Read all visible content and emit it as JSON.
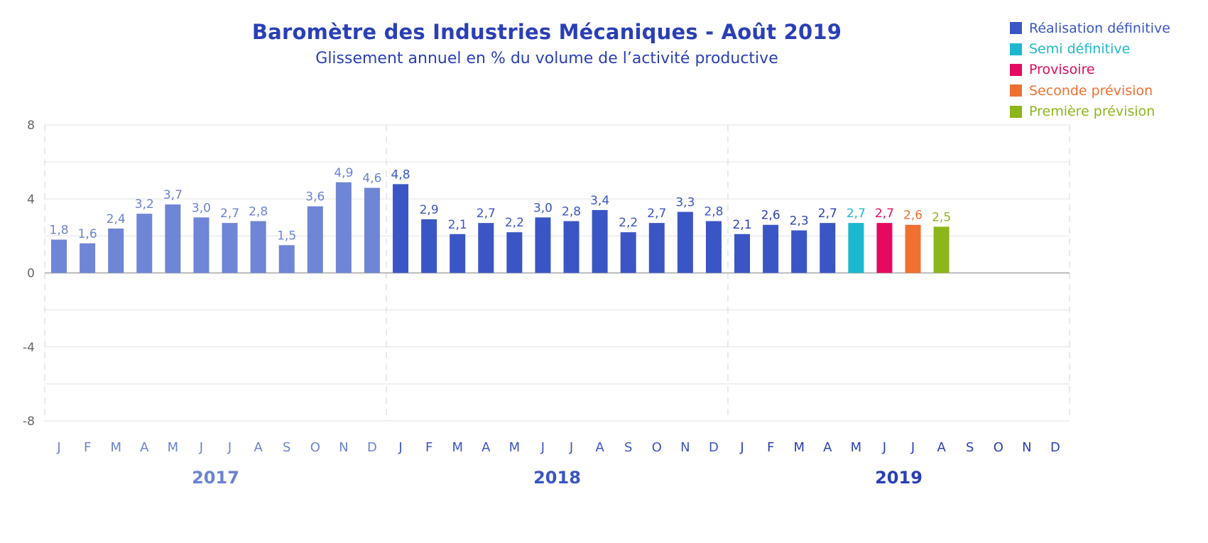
{
  "title": "Baromètre des Industries Mécaniques - Août 2019",
  "subtitle": "Glissement annuel en % du volume de l’activité productive",
  "legend": [
    {
      "label": "Réalisation définitive",
      "color": "#3a56c4"
    },
    {
      "label": "Semi définitive",
      "color": "#1db8cf"
    },
    {
      "label": "Provisoire",
      "color": "#e5095f"
    },
    {
      "label": "Seconde prévision",
      "color": "#ef7031"
    },
    {
      "label": "Première prévision",
      "color": "#8db61b"
    }
  ],
  "chart_data": {
    "type": "bar",
    "title": "Baromètre des Industries Mécaniques - Août 2019",
    "subtitle": "Glissement annuel en % du volume de l’activité productive",
    "ylim": [
      -8,
      8
    ],
    "yticks": [
      "8",
      "4",
      "0",
      "-4",
      "-8"
    ],
    "ytick_values": [
      8,
      4,
      0,
      -4,
      -8
    ],
    "grid": true,
    "legend_position": "top-right",
    "years": [
      {
        "label": "2017",
        "color": "#6b82d4"
      },
      {
        "label": "2018",
        "color": "#3a56c4"
      },
      {
        "label": "2019",
        "color": "#2a3fb6"
      }
    ],
    "month_labels": [
      "J",
      "F",
      "M",
      "A",
      "M",
      "J",
      "J",
      "A",
      "S",
      "O",
      "N",
      "D"
    ],
    "colors": {
      "2017": "#6f85d6",
      "realisation_definitive": "#3a56c4",
      "semi_definitive": "#1db8cf",
      "provisoire": "#e5095f",
      "seconde_prevision": "#ef7031",
      "premiere_prevision": "#8db61b"
    },
    "bars": [
      {
        "year": "2017",
        "month": "J",
        "value": 1.8,
        "label": "1,8",
        "status": "2017"
      },
      {
        "year": "2017",
        "month": "F",
        "value": 1.6,
        "label": "1,6",
        "status": "2017"
      },
      {
        "year": "2017",
        "month": "M",
        "value": 2.4,
        "label": "2,4",
        "status": "2017"
      },
      {
        "year": "2017",
        "month": "A",
        "value": 3.2,
        "label": "3,2",
        "status": "2017"
      },
      {
        "year": "2017",
        "month": "M",
        "value": 3.7,
        "label": "3,7",
        "status": "2017"
      },
      {
        "year": "2017",
        "month": "J",
        "value": 3.0,
        "label": "3,0",
        "status": "2017"
      },
      {
        "year": "2017",
        "month": "J",
        "value": 2.7,
        "label": "2,7",
        "status": "2017"
      },
      {
        "year": "2017",
        "month": "A",
        "value": 2.8,
        "label": "2,8",
        "status": "2017"
      },
      {
        "year": "2017",
        "month": "S",
        "value": 1.5,
        "label": "1,5",
        "status": "2017"
      },
      {
        "year": "2017",
        "month": "O",
        "value": 3.6,
        "label": "3,6",
        "status": "2017"
      },
      {
        "year": "2017",
        "month": "N",
        "value": 4.9,
        "label": "4,9",
        "status": "2017"
      },
      {
        "year": "2017",
        "month": "D",
        "value": 4.6,
        "label": "4,6",
        "status": "2017"
      },
      {
        "year": "2018",
        "month": "J",
        "value": 4.8,
        "label": "4,8",
        "status": "realisation_definitive"
      },
      {
        "year": "2018",
        "month": "F",
        "value": 2.9,
        "label": "2,9",
        "status": "realisation_definitive"
      },
      {
        "year": "2018",
        "month": "M",
        "value": 2.1,
        "label": "2,1",
        "status": "realisation_definitive"
      },
      {
        "year": "2018",
        "month": "A",
        "value": 2.7,
        "label": "2,7",
        "status": "realisation_definitive"
      },
      {
        "year": "2018",
        "month": "M",
        "value": 2.2,
        "label": "2,2",
        "status": "realisation_definitive"
      },
      {
        "year": "2018",
        "month": "J",
        "value": 3.0,
        "label": "3,0",
        "status": "realisation_definitive"
      },
      {
        "year": "2018",
        "month": "J",
        "value": 2.8,
        "label": "2,8",
        "status": "realisation_definitive"
      },
      {
        "year": "2018",
        "month": "A",
        "value": 3.4,
        "label": "3,4",
        "status": "realisation_definitive"
      },
      {
        "year": "2018",
        "month": "S",
        "value": 2.2,
        "label": "2,2",
        "status": "realisation_definitive"
      },
      {
        "year": "2018",
        "month": "O",
        "value": 2.7,
        "label": "2,7",
        "status": "realisation_definitive"
      },
      {
        "year": "2018",
        "month": "N",
        "value": 3.3,
        "label": "3,3",
        "status": "realisation_definitive"
      },
      {
        "year": "2018",
        "month": "D",
        "value": 2.8,
        "label": "2,8",
        "status": "realisation_definitive"
      },
      {
        "year": "2019",
        "month": "J",
        "value": 2.1,
        "label": "2,1",
        "status": "realisation_definitive"
      },
      {
        "year": "2019",
        "month": "F",
        "value": 2.6,
        "label": "2,6",
        "status": "realisation_definitive"
      },
      {
        "year": "2019",
        "month": "M",
        "value": 2.3,
        "label": "2,3",
        "status": "realisation_definitive"
      },
      {
        "year": "2019",
        "month": "A",
        "value": 2.7,
        "label": "2,7",
        "status": "realisation_definitive"
      },
      {
        "year": "2019",
        "month": "M",
        "value": 2.7,
        "label": "2,7",
        "status": "semi_definitive"
      },
      {
        "year": "2019",
        "month": "J",
        "value": 2.7,
        "label": "2,7",
        "status": "provisoire"
      },
      {
        "year": "2019",
        "month": "J",
        "value": 2.6,
        "label": "2,6",
        "status": "seconde_prevision"
      },
      {
        "year": "2019",
        "month": "A",
        "value": 2.5,
        "label": "2,5",
        "status": "premiere_prevision"
      },
      {
        "year": "2019",
        "month": "S",
        "value": null,
        "label": "",
        "status": ""
      },
      {
        "year": "2019",
        "month": "O",
        "value": null,
        "label": "",
        "status": ""
      },
      {
        "year": "2019",
        "month": "N",
        "value": null,
        "label": "",
        "status": ""
      },
      {
        "year": "2019",
        "month": "D",
        "value": null,
        "label": "",
        "status": ""
      }
    ]
  }
}
